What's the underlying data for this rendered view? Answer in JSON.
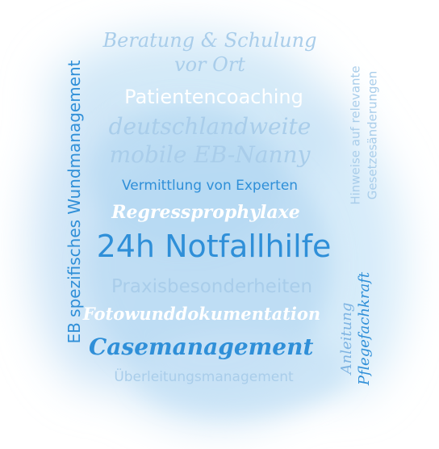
{
  "words": {
    "beratung": "Beratung & Schulung",
    "vor_ort": "vor Ort",
    "patientencoaching": "Patientencoaching",
    "deutschlandweite": "deutschlandweite",
    "nanny": "mobile EB-Nanny",
    "vermittlung": "Vermittlung von Experten",
    "regress": "Regressprophylaxe",
    "notfall": "24h Notfallhilfe",
    "praxis": "Praxisbesonderheiten",
    "fotowund": "Fotowunddokumentation",
    "casemanagement": "Casemanagement",
    "ueberleitung": "Überleitungsmanagement",
    "eb_wund": "EB spezifisches Wundmanagement",
    "hinweise": "Hinweise auf relevante",
    "gesetz": "Gesetzesänderungen",
    "anleitung": "Anleitung",
    "pflege": "Pflegefachkraft"
  },
  "colors": {
    "light_blue": "#a9cdea",
    "mid_blue": "#7fb4e2",
    "blue": "#2f8fd8",
    "white": "#ffffff"
  }
}
